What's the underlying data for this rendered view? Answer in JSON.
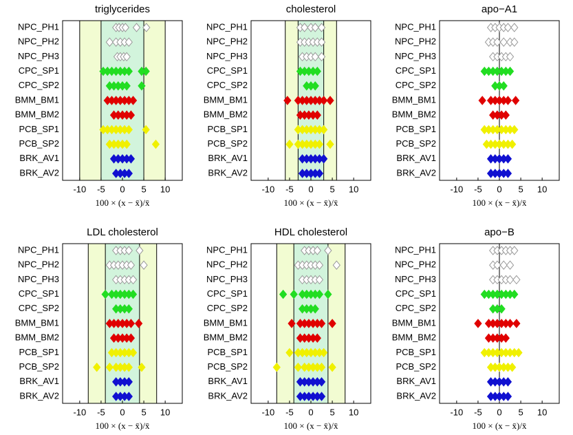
{
  "chart_data": [
    {
      "type": "strip",
      "title": "triglycerides",
      "xlabel": "100 × (x − x̄)/x̄",
      "categories": [
        "NPC_PH1",
        "NPC_PH2",
        "NPC_PH3",
        "CPC_SP1",
        "CPC_SP2",
        "BMM_BM1",
        "BMM_BM2",
        "PCB_SP1",
        "PCB_SP2",
        "BRK_AV1",
        "BRK_AV2"
      ],
      "colors": [
        "#ffffff",
        "#ffffff",
        "#ffffff",
        "#22dd22",
        "#22dd22",
        "#e00000",
        "#e00000",
        "#f0f000",
        "#f0f000",
        "#1010d0",
        "#1010d0"
      ],
      "values": [
        [
          -1.5,
          -0.8,
          0,
          0.7,
          3.3,
          5.6
        ],
        [
          -3,
          -1.5,
          -0.5,
          0.5,
          1.5
        ],
        [
          -1.2,
          -0.5,
          0.3,
          1
        ],
        [
          -4.5,
          -3.5,
          -2.5,
          -1.5,
          -0.5,
          0.5,
          1.5,
          4.5,
          5.5
        ],
        [
          -3,
          -2,
          -1,
          0,
          1,
          4.5
        ],
        [
          -3.5,
          -2.5,
          -1.5,
          -0.5,
          0.5,
          1.5,
          2.5
        ],
        [
          -2,
          -1,
          0,
          1,
          2
        ],
        [
          -4.5,
          -3.5,
          -2.5,
          -1.5,
          -0.5,
          0.5,
          1.5,
          5.5
        ],
        [
          -3,
          -2,
          -1,
          0,
          1,
          7.8
        ],
        [
          -2,
          -1,
          0,
          1,
          2
        ],
        [
          -1.5,
          -0.5,
          0.5,
          1.5
        ]
      ],
      "bands": [
        [
          -10,
          10
        ],
        [
          -5,
          5
        ]
      ],
      "band_colors": [
        "#f2fcd2",
        "#d2f4dc"
      ],
      "xlim": [
        -14,
        14
      ],
      "xticks": [
        -10,
        -5,
        0,
        5,
        10
      ]
    },
    {
      "type": "strip",
      "title": "cholesterol",
      "xlabel": "100 × (x − x̄)/x̄",
      "categories": [
        "NPC_PH1",
        "NPC_PH2",
        "NPC_PH3",
        "CPC_SP1",
        "CPC_SP2",
        "BMM_BM1",
        "BMM_BM2",
        "PCB_SP1",
        "PCB_SP2",
        "BRK_AV1",
        "BRK_AV2"
      ],
      "colors": [
        "#ffffff",
        "#ffffff",
        "#ffffff",
        "#22dd22",
        "#22dd22",
        "#e00000",
        "#e00000",
        "#f0f000",
        "#f0f000",
        "#1010d0",
        "#1010d0"
      ],
      "values": [
        [
          -2.5,
          -1.5,
          0,
          1,
          2.5
        ],
        [
          -2.5,
          -1.5,
          -0.5,
          0.5,
          1.5,
          2.5
        ],
        [
          -2,
          -1,
          0,
          1,
          2.5
        ],
        [
          -2.5,
          -1.5,
          -0.5,
          0.5,
          1.5
        ],
        [
          -1,
          0,
          1
        ],
        [
          -5.5,
          -3,
          -2,
          -1,
          0,
          1,
          2,
          3,
          4.5
        ],
        [
          -2.5,
          -1.5,
          -0.5,
          0.5,
          1.5
        ],
        [
          -3,
          -2,
          -1,
          0,
          1,
          2,
          3
        ],
        [
          -5,
          -3,
          -2,
          -1,
          0,
          1,
          2,
          4.5
        ],
        [
          -2,
          -1,
          0,
          1,
          2,
          3
        ],
        [
          -2,
          -1,
          0,
          1,
          2
        ]
      ],
      "bands": [
        [
          -6,
          6
        ],
        [
          -3,
          3
        ]
      ],
      "band_colors": [
        "#f2fcd2",
        "#d2f4dc"
      ],
      "xlim": [
        -14,
        14
      ],
      "xticks": [
        -10,
        -5,
        0,
        5,
        10
      ]
    },
    {
      "type": "strip",
      "title": "apo−A1",
      "xlabel": "100 × (x − x̄)/x̄",
      "categories": [
        "NPC_PH1",
        "NPC_PH2",
        "NPC_PH3",
        "CPC_SP1",
        "CPC_SP2",
        "BMM_BM1",
        "BMM_BM2",
        "PCB_SP1",
        "PCB_SP2",
        "BRK_AV1",
        "BRK_AV2"
      ],
      "colors": [
        "#ffffff",
        "#ffffff",
        "#ffffff",
        "#22dd22",
        "#22dd22",
        "#e00000",
        "#e00000",
        "#f0f000",
        "#f0f000",
        "#1010d0",
        "#1010d0"
      ],
      "values": [
        [
          -2,
          -1,
          0,
          1,
          2,
          3.5
        ],
        [
          -2.5,
          -1.5,
          -0.5,
          1,
          2.5,
          3.5
        ],
        [
          -1.5,
          -0.5,
          0.5,
          1.5,
          2.5
        ],
        [
          -3.5,
          -2.5,
          -1.5,
          -0.5,
          0.5,
          1.5,
          2.5
        ],
        [
          -1,
          0,
          1
        ],
        [
          -4,
          -2,
          -1,
          0,
          1,
          2,
          3.8
        ],
        [
          -1.5,
          -0.5,
          0.5,
          1.5
        ],
        [
          -3.5,
          -2.5,
          -1.5,
          -0.5,
          0.5,
          1.5,
          2.5,
          3.5
        ],
        [
          -3,
          -2,
          -1,
          0,
          1,
          2,
          3
        ],
        [
          -2,
          -1,
          0,
          1,
          2
        ],
        [
          -2,
          -1,
          0,
          1,
          2
        ]
      ],
      "reference_lines": [
        0
      ],
      "xlim": [
        -14,
        14
      ],
      "xticks": [
        -10,
        -5,
        0,
        5,
        10
      ]
    },
    {
      "type": "strip",
      "title": "LDL cholesterol",
      "xlabel": "100 × (x − x̄)/x̄",
      "categories": [
        "NPC_PH1",
        "NPC_PH2",
        "NPC_PH3",
        "CPC_SP1",
        "CPC_SP2",
        "BMM_BM1",
        "BMM_BM2",
        "PCB_SP1",
        "PCB_SP2",
        "BRK_AV1",
        "BRK_AV2"
      ],
      "colors": [
        "#ffffff",
        "#ffffff",
        "#ffffff",
        "#22dd22",
        "#22dd22",
        "#e00000",
        "#e00000",
        "#f0f000",
        "#f0f000",
        "#1010d0",
        "#1010d0"
      ],
      "values": [
        [
          -1.5,
          -0.5,
          0.5,
          1.5,
          4
        ],
        [
          -3,
          -2,
          -1,
          0,
          1,
          2,
          5
        ],
        [
          -1.5,
          -0.5,
          0.5,
          1.5,
          2.5
        ],
        [
          -4,
          -2.5,
          -1.5,
          -0.5,
          0.5,
          1.5,
          2.5
        ],
        [
          -1.5,
          -0.5,
          0.5,
          1.5
        ],
        [
          -3,
          -2,
          -1,
          0,
          1,
          2,
          3.8
        ],
        [
          -2,
          -1,
          0,
          1,
          2
        ],
        [
          -2.5,
          -1.5,
          -0.5,
          0.5,
          1.5,
          2.5
        ],
        [
          -6,
          -3,
          -1.5,
          -0.5,
          0.5,
          1.5,
          4.5
        ],
        [
          -1.5,
          -0.5,
          0.5,
          1.5
        ],
        [
          -1.5,
          -0.5,
          0.5,
          1.5
        ]
      ],
      "bands": [
        [
          -8,
          8
        ],
        [
          -4,
          4
        ]
      ],
      "band_colors": [
        "#f2fcd2",
        "#d2f4dc"
      ],
      "xlim": [
        -14,
        14
      ],
      "xticks": [
        -10,
        -5,
        0,
        5,
        10
      ]
    },
    {
      "type": "strip",
      "title": "HDL cholesterol",
      "xlabel": "100 × (x − x̄)/x̄",
      "categories": [
        "NPC_PH1",
        "NPC_PH2",
        "NPC_PH3",
        "CPC_SP1",
        "CPC_SP2",
        "BMM_BM1",
        "BMM_BM2",
        "PCB_SP1",
        "PCB_SP2",
        "BRK_AV1",
        "BRK_AV2"
      ],
      "colors": [
        "#ffffff",
        "#ffffff",
        "#ffffff",
        "#22dd22",
        "#22dd22",
        "#e00000",
        "#e00000",
        "#f0f000",
        "#f0f000",
        "#1010d0",
        "#1010d0"
      ],
      "values": [
        [
          -1.5,
          -0.5,
          0.5,
          1.5,
          4
        ],
        [
          -3,
          -2,
          -1,
          0,
          1,
          2,
          6
        ],
        [
          -2,
          -1,
          0,
          1,
          2
        ],
        [
          -6.5,
          -4,
          -2,
          -1,
          0,
          1,
          2,
          4
        ],
        [
          -2,
          -1,
          0,
          1
        ],
        [
          -4.5,
          -2.5,
          -1.5,
          -0.5,
          0.5,
          1.5,
          2.5,
          5
        ],
        [
          -2.5,
          -1.5,
          -0.5,
          0.5,
          1.5
        ],
        [
          -5,
          -3,
          -2,
          -1,
          0,
          1,
          2,
          3
        ],
        [
          -8,
          -3,
          -1.5,
          -0.5,
          0.5,
          1.5,
          2.5,
          5
        ],
        [
          -2.5,
          -1.5,
          -0.5,
          0.5,
          1.5,
          2.5
        ],
        [
          -2.5,
          -1.5,
          -0.5,
          0.5,
          1.5,
          2.5
        ]
      ],
      "bands": [
        [
          -8,
          8
        ],
        [
          -4,
          4
        ]
      ],
      "band_colors": [
        "#f2fcd2",
        "#d2f4dc"
      ],
      "xlim": [
        -14,
        14
      ],
      "xticks": [
        -10,
        -5,
        0,
        5,
        10
      ]
    },
    {
      "type": "strip",
      "title": "apo−B",
      "xlabel": "100 × (x − x̄)/x̄",
      "categories": [
        "NPC_PH1",
        "NPC_PH2",
        "NPC_PH3",
        "CPC_SP1",
        "CPC_SP2",
        "BMM_BM1",
        "BMM_BM2",
        "PCB_SP1",
        "PCB_SP2",
        "BRK_AV1",
        "BRK_AV2"
      ],
      "colors": [
        "#ffffff",
        "#ffffff",
        "#ffffff",
        "#22dd22",
        "#22dd22",
        "#e00000",
        "#e00000",
        "#f0f000",
        "#f0f000",
        "#1010d0",
        "#1010d0"
      ],
      "values": [
        [
          -1.5,
          -0.5,
          0.5,
          1.5,
          2.5,
          3.5
        ],
        [
          -1.5,
          -0.5,
          1,
          2.5
        ],
        [
          -1.5,
          -0.5,
          0.5,
          1.5,
          2.5,
          4
        ],
        [
          -3.5,
          -2.5,
          -1.5,
          -0.5,
          0.5,
          1.5,
          2.5,
          3.5
        ],
        [
          -1.5,
          -0.5,
          0.5
        ],
        [
          -5,
          -2.5,
          -1.5,
          -0.5,
          0.5,
          1.5,
          2.5,
          4
        ],
        [
          -2.5,
          -1.5,
          -0.5,
          0.5,
          1.5
        ],
        [
          -3.5,
          -2.5,
          -1.5,
          -0.5,
          0.5,
          1.5,
          2.5,
          3.5,
          4.5
        ],
        [
          -2,
          -1,
          0,
          1,
          2,
          3
        ],
        [
          -2,
          -1,
          0,
          1,
          2
        ],
        [
          -2,
          -1,
          0,
          1,
          2
        ]
      ],
      "reference_lines": [
        0
      ],
      "xlim": [
        -14,
        14
      ],
      "xticks": [
        -10,
        -5,
        0,
        5,
        10
      ]
    }
  ]
}
